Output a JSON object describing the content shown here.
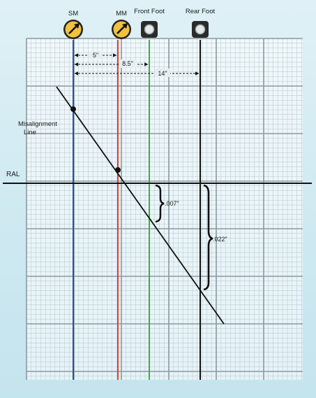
{
  "title": "",
  "labels": {
    "sm": "SM",
    "mm": "MM",
    "front_foot": "Front Foot",
    "rear_foot": "Rear Foot",
    "misalignment_line": [
      "Misalignment",
      "Line"
    ],
    "ral": "RAL"
  },
  "dimensions": {
    "sm_to_mm": "5\"",
    "sm_to_front_foot": "8.5\"",
    "sm_to_rear_foot": "14\"",
    "front_foot_offset": ".007\"",
    "rear_foot_offset": ".022\""
  },
  "colors": {
    "sm_line": "#2a4fa8",
    "mm_line": "#d8442c",
    "front_foot_line": "#38b23a",
    "rear_foot_line": "#111111",
    "misalignment_line": "#111111",
    "grid_minor": "#b9c3c8",
    "grid_major": "#8d989e",
    "dial_face": "#f2c23a"
  },
  "icons": {
    "sm": "dial-indicator-icon",
    "mm": "dial-indicator-icon",
    "front_foot": "foot-bolt-icon",
    "rear_foot": "foot-bolt-icon"
  }
}
